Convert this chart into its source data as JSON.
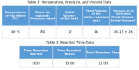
{
  "table2_title": "Table 2: Temperature, Pressure, and Volume Data",
  "table2_headers": [
    "Temperature\nof Tap Water\n(°C)",
    "Room (or\nregional)\nPressure (atm)",
    "Initial\nVolume\nof Air (mL)",
    "Final Volume\nof Air\n(after reaction)\n(mL)",
    "Volume of O₂\nCollected\n(Final Volume -\nInitial Volume)"
  ],
  "table2_row": [
    "48 °C",
    "750",
    "17",
    "45",
    "45-17 = 28"
  ],
  "table3_title": "Table 3: Reaction Time Data",
  "table3_headers": [
    "Time Reaction\nStarted",
    "Time Reaction\nEnded",
    "Total Reaction Time"
  ],
  "table3_row": [
    "0.00",
    "13.00",
    "13.00"
  ],
  "header_bg": "#5b9bd5",
  "header_text": "#ffffff",
  "row_bg": "#ffffff",
  "row_text": "#000000",
  "title_color": "#000000",
  "bg_color": "#ffffff"
}
